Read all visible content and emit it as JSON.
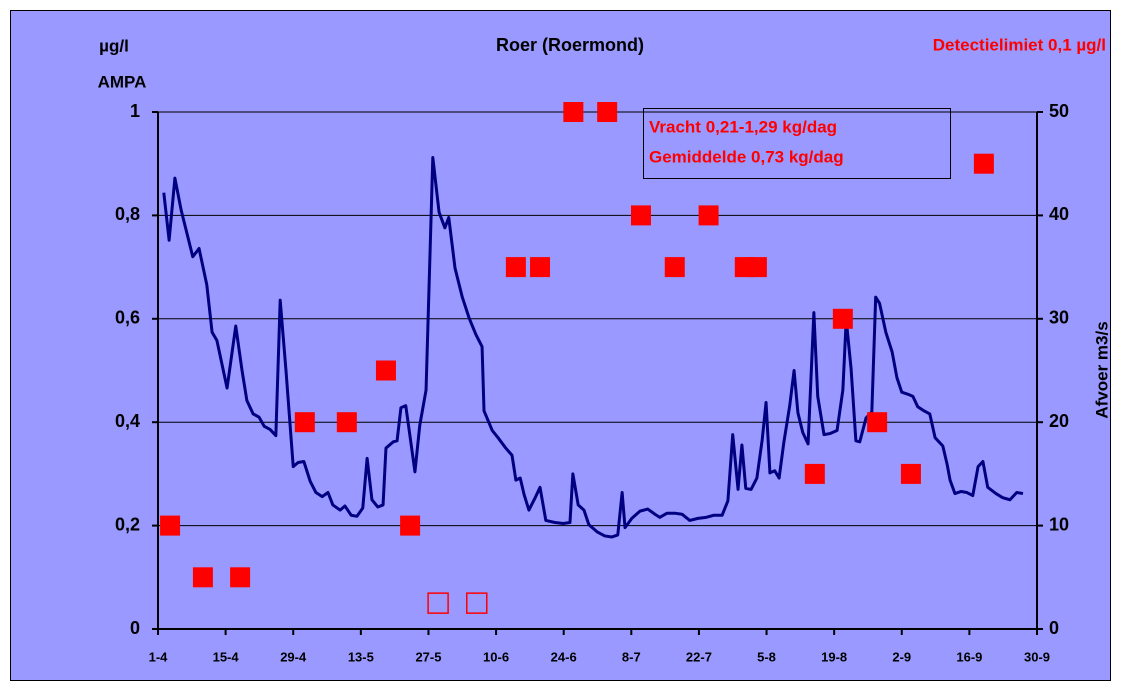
{
  "chart_data": {
    "type": "combo",
    "title": "Roer (Roermond)",
    "y_label": [
      "µg/l",
      "AMPA"
    ],
    "y2_label": "Afvoer m3/s",
    "annotations": [
      "Detectielimiet 0,1 µg/l",
      "Vracht 0,21-1,29 kg/dag",
      "Gemiddelde 0,73 kg/dag"
    ],
    "annotation_color": "#ff0000",
    "background": "#9999ff",
    "grid": true,
    "xlim": [
      0,
      182
    ],
    "xticks": [
      {
        "value": 0,
        "label": "1-4"
      },
      {
        "value": 14,
        "label": "15-4"
      },
      {
        "value": 28,
        "label": "29-4"
      },
      {
        "value": 42,
        "label": "13-5"
      },
      {
        "value": 56,
        "label": "27-5"
      },
      {
        "value": 70,
        "label": "10-6"
      },
      {
        "value": 84,
        "label": "24-6"
      },
      {
        "value": 98,
        "label": "8-7"
      },
      {
        "value": 112,
        "label": "22-7"
      },
      {
        "value": 126,
        "label": "5-8"
      },
      {
        "value": 140,
        "label": "19-8"
      },
      {
        "value": 154,
        "label": "2-9"
      },
      {
        "value": 168,
        "label": "16-9"
      },
      {
        "value": 182,
        "label": "30-9"
      }
    ],
    "ylim": [
      0,
      1
    ],
    "yticks": [
      0,
      {
        "value": 0.2,
        "label": "0,2"
      },
      {
        "value": 0.4,
        "label": "0,4"
      },
      {
        "value": 0.6,
        "label": "0,6"
      },
      {
        "value": 0.8,
        "label": "0,8"
      },
      1
    ],
    "y2lim": [
      0,
      50
    ],
    "y2ticks": [
      0,
      10,
      20,
      30,
      40,
      50
    ],
    "series": [
      {
        "type": "line",
        "axis": "y2",
        "color": "#000080",
        "x": [
          1.2,
          2.3,
          3.5,
          4.8,
          7.2,
          8.5,
          10.1,
          11.2,
          12.2,
          14.3,
          16.1,
          17.4,
          18.4,
          19.7,
          20.9,
          22.0,
          23.2,
          24.4,
          25.3,
          26.5,
          28.0,
          29.0,
          30.2,
          31.5,
          32.7,
          34.0,
          35.2,
          36.2,
          37.7,
          38.7,
          40.0,
          41.2,
          42.4,
          43.3,
          44.3,
          45.5,
          46.6,
          47.2,
          48.7,
          49.5,
          50.3,
          51.3,
          53.2,
          54.2,
          55.5,
          56.9,
          58.2,
          59.4,
          60.2,
          61.5,
          63.0,
          64.4,
          65.8,
          67.1,
          67.5,
          69.2,
          70.4,
          72.0,
          73.3,
          74.1,
          75.0,
          75.8,
          76.8,
          78.1,
          79.1,
          80.3,
          82.2,
          83.9,
          85.3,
          85.9,
          87.0,
          88.2,
          89.2,
          90.9,
          92.5,
          94.0,
          95.2,
          96.1,
          96.7,
          98.1,
          99.8,
          101.4,
          102.9,
          103.9,
          105.4,
          107.0,
          108.5,
          110.1,
          111.8,
          113.5,
          115.1,
          116.8,
          118.0,
          119.0,
          120.1,
          120.9,
          121.7,
          122.8,
          124.0,
          125.1,
          125.9,
          126.7,
          127.7,
          128.6,
          129.6,
          130.8,
          131.7,
          132.5,
          133.5,
          134.6,
          135.8,
          136.6,
          137.9,
          139.1,
          140.6,
          141.8,
          142.5,
          143.5,
          144.5,
          145.3,
          146.6,
          147.8,
          148.6,
          149.4,
          150.7,
          152.0,
          153.0,
          154.0,
          155.3,
          156.3,
          157.3,
          158.6,
          159.8,
          160.9,
          162.5,
          163.4,
          164.0,
          165.0,
          166.3,
          167.5,
          168.7,
          169.8,
          170.8,
          171.8,
          173.5,
          174.9,
          176.4,
          177.8,
          179.1
        ],
        "values": [
          42.2,
          37.6,
          43.6,
          40.5,
          36,
          36.8,
          33.3,
          28.7,
          27.9,
          23.3,
          29.3,
          25,
          22.1,
          20.8,
          20.5,
          19.6,
          19.3,
          18.7,
          31.8,
          25,
          15.7,
          16.1,
          16.2,
          14.3,
          13.2,
          12.8,
          13.2,
          12,
          11.5,
          11.9,
          11,
          10.9,
          11.7,
          16.5,
          12.5,
          11.8,
          12,
          17.5,
          18.1,
          18.2,
          21.4,
          21.6,
          15.2,
          19.7,
          23.1,
          45.6,
          40.3,
          38.8,
          39.8,
          34.9,
          32.1,
          30.1,
          28.5,
          27.3,
          21.1,
          19.2,
          18.5,
          17.5,
          16.8,
          14.4,
          14.6,
          13,
          11.5,
          12.7,
          13.7,
          10.5,
          10.3,
          10.2,
          10.3,
          15,
          12,
          11.5,
          10.1,
          9.4,
          9,
          8.9,
          9.1,
          13.2,
          9.8,
          10.7,
          11.4,
          11.6,
          11.1,
          10.8,
          11.2,
          11.2,
          11.1,
          10.5,
          10.7,
          10.8,
          11,
          11,
          12.4,
          18.8,
          13.5,
          17.8,
          13.6,
          13.5,
          14.6,
          18.3,
          21.9,
          15.1,
          15.3,
          14.6,
          18.1,
          21.6,
          25,
          20.9,
          19,
          17.9,
          30.6,
          22.5,
          18.8,
          18.9,
          19.2,
          23.1,
          29.9,
          25.2,
          18.2,
          18.1,
          20.4,
          21,
          32.1,
          31.5,
          28.7,
          26.8,
          24.3,
          22.9,
          22.7,
          22.5,
          21.5,
          21.1,
          20.8,
          18.5,
          17.7,
          15.9,
          14.4,
          13.1,
          13.3,
          13.2,
          12.9,
          15.7,
          16.2,
          13.7,
          13.1,
          12.7,
          12.5,
          13.2,
          13.1
        ]
      },
      {
        "type": "scatter",
        "axis": "y",
        "color": "#ff0000",
        "marker": "filled",
        "x": [
          2.5,
          9.3,
          17,
          30.4,
          39.1,
          47.2,
          52.2,
          74.1,
          79.1,
          86,
          93,
          100,
          107,
          114,
          121.5,
          124,
          136,
          141.8,
          148.9,
          155.9,
          171
        ],
        "values": [
          0.2,
          0.1,
          0.1,
          0.4,
          0.4,
          0.5,
          0.2,
          0.7,
          0.7,
          1,
          1,
          0.8,
          0.7,
          0.8,
          0.7,
          0.7,
          0.3,
          0.6,
          0.4,
          0.3,
          0.9
        ]
      },
      {
        "type": "scatter",
        "axis": "y",
        "color": "#ff0000",
        "marker": "open",
        "x": [
          58,
          66
        ],
        "values": [
          0.05,
          0.05
        ]
      }
    ]
  }
}
